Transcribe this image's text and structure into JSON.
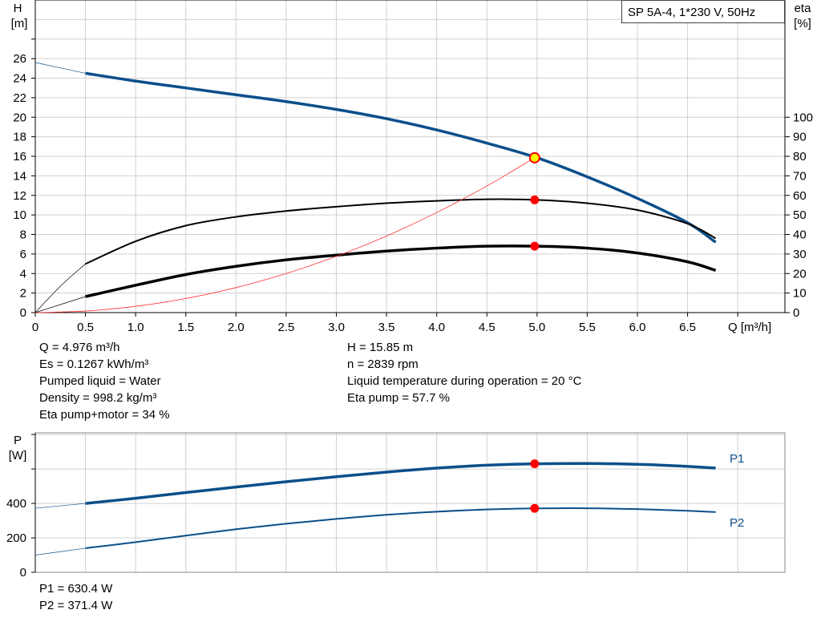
{
  "title": "SP 5A-4, 1*230 V, 50Hz",
  "colors": {
    "head": "#0b4f8a",
    "eta": "#000000",
    "system": "#ff3030",
    "duty_point": "#ff0000",
    "duty_fill": "#ffff00",
    "power": "#0b4f8a",
    "grid": "#d0d0d0"
  },
  "chart_data": [
    {
      "type": "line",
      "xlabel": "Q [m³/h]",
      "ylabel_left": [
        "H",
        "[m]"
      ],
      "ylabel_right": [
        "eta",
        "[%]"
      ],
      "xlim": [
        0,
        7.47
      ],
      "ylim_left": [
        0,
        32
      ],
      "ylim_right": [
        0,
        160
      ],
      "x_ticks": [
        "0",
        "0.5",
        "1.0",
        "1.5",
        "2.0",
        "2.5",
        "3.0",
        "3.5",
        "4.0",
        "4.5",
        "5.0",
        "5.5",
        "6.0",
        "6.5"
      ],
      "y_ticks_left": [
        "0",
        "2",
        "4",
        "6",
        "8",
        "10",
        "12",
        "14",
        "16",
        "18",
        "20",
        "22",
        "24",
        "26"
      ],
      "y_ticks_right": [
        "0",
        "10",
        "20",
        "30",
        "40",
        "50",
        "60",
        "70",
        "80",
        "90",
        "100"
      ],
      "grid": true,
      "series": [
        {
          "key": "H",
          "axis": "left",
          "x": [
            0.5,
            1.0,
            1.5,
            2.0,
            2.5,
            3.0,
            3.5,
            4.0,
            4.5,
            5.0,
            5.5,
            6.0,
            6.5,
            6.78
          ],
          "y": [
            24.5,
            23.7,
            23.0,
            22.3,
            21.6,
            20.8,
            19.85,
            18.7,
            17.35,
            15.85,
            13.9,
            11.7,
            9.2,
            7.2
          ],
          "extension": {
            "x": [
              0,
              0.5
            ],
            "y": [
              25.6,
              24.5
            ]
          }
        },
        {
          "key": "eta_pump",
          "axis": "right",
          "x": [
            0.5,
            1.0,
            1.5,
            2.0,
            2.5,
            3.0,
            3.5,
            4.0,
            4.5,
            5.0,
            5.5,
            6.0,
            6.5,
            6.78
          ],
          "y": [
            24.9,
            36.5,
            44.5,
            49.0,
            52.0,
            54.2,
            56.0,
            57.2,
            58.0,
            57.7,
            56.0,
            52.5,
            45.5,
            38.0
          ],
          "extension": {
            "x": [
              0,
              0.25,
              0.5
            ],
            "y": [
              0,
              13.5,
              24.9
            ]
          }
        },
        {
          "key": "eta_pump_motor",
          "axis": "right",
          "x": [
            0.5,
            1.0,
            1.5,
            2.0,
            2.5,
            3.0,
            3.5,
            4.0,
            4.5,
            5.0,
            5.5,
            6.0,
            6.5,
            6.78
          ],
          "y": [
            8.2,
            14.0,
            19.5,
            23.7,
            27.0,
            29.4,
            31.5,
            33.0,
            34.0,
            34.0,
            33.0,
            30.5,
            26.0,
            21.6
          ],
          "extension": {
            "x": [
              0,
              0.5
            ],
            "y": [
              0,
              8.2
            ]
          }
        },
        {
          "key": "system_curve",
          "axis": "left",
          "x": [
            0,
            0.5,
            1.0,
            1.5,
            2.0,
            2.5,
            3.0,
            3.5,
            4.0,
            4.5,
            4.976
          ],
          "y": [
            0,
            0.16,
            0.64,
            1.44,
            2.56,
            4.0,
            5.76,
            7.84,
            10.24,
            12.96,
            15.85
          ]
        }
      ],
      "duty_points": [
        {
          "x": 4.976,
          "y": 15.85,
          "axis": "left",
          "style": "ring"
        },
        {
          "x": 4.976,
          "y": 57.7,
          "axis": "right",
          "style": "dot"
        },
        {
          "x": 4.976,
          "y": 34,
          "axis": "right",
          "style": "dot"
        }
      ]
    },
    {
      "type": "line",
      "ylabel": [
        "P",
        "[W]"
      ],
      "xlim": [
        0,
        7.47
      ],
      "ylim": [
        0,
        810
      ],
      "y_ticks": [
        "0",
        "200",
        "400"
      ],
      "y_tick_values": [
        0,
        200,
        400,
        600,
        800
      ],
      "grid": true,
      "series": [
        {
          "name": "P1",
          "x": [
            0.5,
            1.0,
            1.5,
            2.0,
            2.5,
            3.0,
            3.5,
            4.0,
            4.5,
            5.0,
            5.5,
            6.0,
            6.5,
            6.78
          ],
          "y": [
            400,
            430,
            463,
            495,
            526,
            555,
            582,
            605,
            622,
            630,
            632,
            627,
            615,
            605
          ],
          "extension": {
            "x": [
              0,
              0.5
            ],
            "y": [
              372,
              400
            ]
          }
        },
        {
          "name": "P2",
          "x": [
            0.5,
            1.0,
            1.5,
            2.0,
            2.5,
            3.0,
            3.5,
            4.0,
            4.5,
            5.0,
            5.5,
            6.0,
            6.5,
            6.78
          ],
          "y": [
            140,
            175,
            213,
            250,
            282,
            310,
            334,
            352,
            365,
            371,
            372,
            367,
            357,
            350
          ],
          "extension": {
            "x": [
              0,
              0.5
            ],
            "y": [
              100,
              140
            ]
          }
        }
      ],
      "duty_points": [
        {
          "x": 4.976,
          "y": 630.4
        },
        {
          "x": 4.976,
          "y": 371.4
        }
      ]
    }
  ],
  "info_left": [
    "Q = 4.976 m³/h",
    "Es = 0.1267 kWh/m³",
    "Pumped liquid = Water",
    "Density = 998.2 kg/m³",
    "Eta pump+motor = 34 %"
  ],
  "info_right": [
    "H = 15.85 m",
    "n = 2839 rpm",
    "Liquid temperature during operation = 20 °C",
    "Eta pump = 57.7 %"
  ],
  "power_info": [
    "P1 = 630.4 W",
    "P2 = 371.4 W"
  ]
}
